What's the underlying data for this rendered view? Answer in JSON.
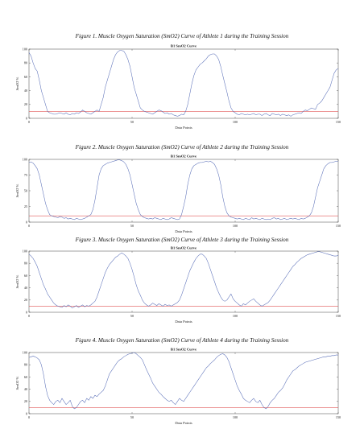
{
  "figures": [
    {
      "caption": "Figure 1. Muscle Oxygen Saturation (SmO2) Curve of Athlete 1 during the Training Session",
      "chart_data": {
        "type": "line",
        "title": "B1 SmO2 Curve",
        "xlabel": "Data Points",
        "ylabel": "SmO2 %",
        "xlim": [
          0,
          150
        ],
        "ylim": [
          0,
          100
        ],
        "xticks": [
          0,
          50,
          100,
          150
        ],
        "yticks": [
          0,
          20,
          40,
          60,
          80,
          100
        ],
        "threshold": 10,
        "series": [
          {
            "values": [
              95,
              90,
              80,
              72,
              68,
              55,
              40,
              30,
              20,
              10,
              8,
              7,
              6,
              6,
              7,
              8,
              7,
              6,
              8,
              6,
              5,
              7,
              6,
              8,
              7,
              9,
              12,
              10,
              8,
              7,
              6,
              8,
              10,
              12,
              10,
              20,
              30,
              45,
              55,
              65,
              75,
              85,
              92,
              96,
              98,
              98,
              97,
              92,
              85,
              75,
              60,
              45,
              35,
              25,
              15,
              12,
              10,
              9,
              8,
              7,
              6,
              8,
              10,
              12,
              11,
              9,
              7,
              8,
              6,
              7,
              5,
              4,
              3,
              4,
              6,
              5,
              10,
              20,
              35,
              50,
              62,
              70,
              74,
              78,
              80,
              83,
              86,
              90,
              92,
              93,
              93,
              90,
              85,
              75,
              62,
              50,
              38,
              25,
              15,
              10,
              8,
              6,
              5,
              7,
              6,
              5,
              6,
              5,
              6,
              7,
              5,
              6,
              6,
              4,
              6,
              7,
              5,
              4,
              7,
              6,
              5,
              6,
              4,
              6,
              5,
              4,
              5,
              3,
              5,
              6,
              7,
              8,
              7,
              10,
              12,
              11,
              13,
              15,
              14,
              13,
              20,
              22,
              25,
              30,
              35,
              40,
              45,
              55,
              65,
              70,
              72
            ]
          }
        ],
        "colors": {
          "line": "#5a6fb8",
          "threshold": "#e05555"
        }
      }
    },
    {
      "caption": "Figure 2. Muscle Oxygen Saturation (SmO2) Curve of Athlete 2 during the Training Session",
      "chart_data": {
        "type": "line",
        "title": "B1 SmO2 Curve",
        "xlabel": "Data Points",
        "ylabel": "SmO2 %",
        "xlim": [
          0,
          150
        ],
        "ylim": [
          0,
          100
        ],
        "xticks": [
          0,
          50,
          100,
          150
        ],
        "yticks": [
          0,
          25,
          50,
          75,
          100
        ],
        "threshold": 10,
        "series": [
          {
            "values": [
              95,
              96,
              94,
              90,
              85,
              75,
              60,
              45,
              30,
              20,
              12,
              10,
              9,
              8,
              7,
              9,
              8,
              6,
              7,
              5,
              6,
              5,
              4,
              6,
              5,
              4,
              5,
              6,
              8,
              10,
              12,
              20,
              35,
              55,
              75,
              85,
              90,
              92,
              94,
              95,
              96,
              97,
              98,
              99,
              99,
              98,
              96,
              92,
              85,
              75,
              60,
              45,
              30,
              20,
              12,
              9,
              7,
              6,
              5,
              6,
              5,
              7,
              6,
              5,
              4,
              6,
              5,
              4,
              5,
              7,
              6,
              5,
              4,
              5,
              12,
              25,
              40,
              60,
              75,
              85,
              90,
              92,
              94,
              95,
              95,
              96,
              97,
              96,
              97,
              95,
              92,
              85,
              75,
              60,
              40,
              25,
              15,
              10,
              8,
              7,
              6,
              5,
              6,
              5,
              4,
              6,
              5,
              4,
              7,
              5,
              6,
              5,
              4,
              6,
              5,
              4,
              5,
              4,
              6,
              7,
              5,
              6,
              4,
              5,
              6,
              4,
              5,
              6,
              5,
              6,
              5,
              4,
              6,
              5,
              6,
              8,
              10,
              15,
              25,
              40,
              55,
              65,
              75,
              85,
              90,
              93,
              95,
              95,
              96,
              97,
              97
            ]
          }
        ],
        "colors": {
          "line": "#5a6fb8",
          "threshold": "#e05555"
        }
      }
    },
    {
      "caption": "Figure 3. Muscle Oxygen Saturation (SmO2) Curve of Athlete 3 during the Training Session",
      "chart_data": {
        "type": "line",
        "title": "B1 SmO2 Curve",
        "xlabel": "Data Points",
        "ylabel": "SmO2 %",
        "xlim": [
          0,
          150
        ],
        "ylim": [
          0,
          100
        ],
        "xticks": [
          0,
          50,
          100,
          150
        ],
        "yticks": [
          0,
          20,
          40,
          60,
          80,
          100
        ],
        "threshold": 10,
        "series": [
          {
            "values": [
              95,
              92,
              88,
              82,
              75,
              65,
              55,
              45,
              38,
              30,
              25,
              20,
              15,
              12,
              10,
              9,
              8,
              11,
              9,
              12,
              10,
              7,
              9,
              11,
              8,
              10,
              12,
              9,
              11,
              10,
              12,
              15,
              18,
              25,
              35,
              45,
              55,
              65,
              72,
              78,
              82,
              86,
              90,
              92,
              95,
              97,
              95,
              92,
              88,
              80,
              70,
              58,
              45,
              35,
              28,
              20,
              15,
              12,
              10,
              12,
              15,
              13,
              11,
              14,
              12,
              10,
              13,
              11,
              12,
              10,
              12,
              14,
              16,
              20,
              28,
              38,
              48,
              58,
              68,
              75,
              82,
              88,
              92,
              95,
              95,
              92,
              88,
              80,
              70,
              60,
              50,
              40,
              32,
              25,
              20,
              18,
              20,
              25,
              30,
              22,
              18,
              15,
              12,
              10,
              14,
              12,
              15,
              18,
              20,
              22,
              18,
              15,
              12,
              10,
              12,
              14,
              16,
              20,
              25,
              30,
              35,
              40,
              45,
              50,
              55,
              60,
              65,
              70,
              75,
              78,
              82,
              85,
              88,
              90,
              92,
              94,
              95,
              96,
              97,
              98,
              99,
              99,
              98,
              97,
              96,
              95,
              94,
              93,
              92,
              92,
              93
            ]
          }
        ],
        "colors": {
          "line": "#5a6fb8",
          "threshold": "#e05555"
        }
      }
    },
    {
      "caption": "Figure 4. Muscle Oxygen Saturation (SmO2) Curve of Athlete 4 during the Training Session",
      "chart_data": {
        "type": "line",
        "title": "B1 SmO2 Curve",
        "xlabel": "Data Points",
        "ylabel": "SmO2 %",
        "xlim": [
          0,
          150
        ],
        "ylim": [
          0,
          100
        ],
        "xticks": [
          0,
          50,
          100,
          150
        ],
        "yticks": [
          0,
          20,
          40,
          60,
          80,
          100
        ],
        "threshold": 10,
        "series": [
          {
            "values": [
              92,
              93,
              94,
              93,
              91,
              88,
              80,
              65,
              45,
              30,
              22,
              18,
              15,
              20,
              22,
              18,
              25,
              20,
              15,
              18,
              22,
              12,
              8,
              10,
              15,
              20,
              22,
              18,
              25,
              22,
              28,
              25,
              30,
              28,
              32,
              35,
              38,
              45,
              55,
              65,
              70,
              75,
              80,
              85,
              88,
              90,
              93,
              95,
              97,
              98,
              99,
              100,
              98,
              95,
              92,
              88,
              80,
              72,
              65,
              58,
              50,
              45,
              40,
              35,
              32,
              28,
              25,
              22,
              20,
              22,
              18,
              15,
              20,
              25,
              22,
              20,
              25,
              30,
              35,
              40,
              45,
              50,
              55,
              60,
              65,
              70,
              75,
              78,
              82,
              85,
              88,
              92,
              95,
              97,
              98,
              96,
              92,
              85,
              75,
              65,
              55,
              45,
              38,
              32,
              25,
              22,
              20,
              18,
              22,
              25,
              20,
              18,
              22,
              15,
              10,
              8,
              12,
              18,
              22,
              25,
              30,
              35,
              38,
              42,
              48,
              55,
              60,
              65,
              70,
              72,
              75,
              78,
              80,
              82,
              84,
              85,
              86,
              87,
              88,
              89,
              90,
              91,
              92,
              93,
              93,
              94,
              94,
              95,
              95,
              96,
              96
            ]
          }
        ],
        "colors": {
          "line": "#5a6fb8",
          "threshold": "#e05555"
        }
      }
    }
  ]
}
